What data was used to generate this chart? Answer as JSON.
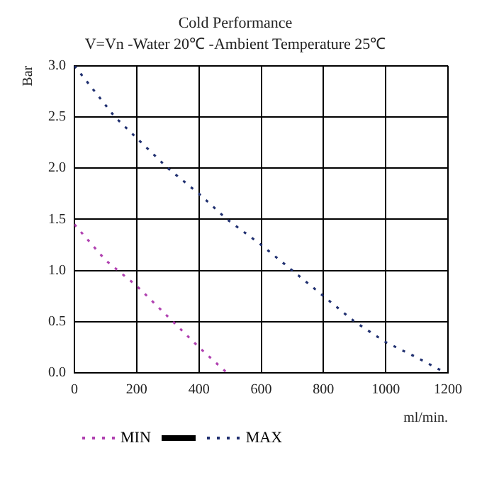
{
  "chart_data": {
    "type": "line",
    "title": "Cold Performance",
    "subtitle": "V=Vn -Water 20℃ -Ambient Temperature 25℃",
    "xlabel": "ml/min.",
    "ylabel": "Bar",
    "series": [
      {
        "name": "MIN",
        "color": "#b040b0",
        "x": [
          0,
          100,
          200,
          300,
          400,
          490
        ],
        "values": [
          1.45,
          1.1,
          0.85,
          0.55,
          0.25,
          0
        ]
      },
      {
        "name": "MAX",
        "color": "#203070",
        "x": [
          0,
          130,
          300,
          400,
          490,
          600,
          700,
          800,
          900,
          1000,
          1100,
          1180
        ],
        "values": [
          3.0,
          2.5,
          2.0,
          1.75,
          1.5,
          1.25,
          1.0,
          0.75,
          0.5,
          0.3,
          0.15,
          0.02
        ]
      }
    ],
    "xlim": [
      0,
      1200
    ],
    "xticks": [
      0,
      200,
      400,
      600,
      800,
      1000,
      1200
    ],
    "ylim": [
      0,
      3
    ],
    "yticks": [
      {
        "value": 0,
        "label": "0.0"
      },
      {
        "value": 0.5,
        "label": "0.5"
      },
      {
        "value": 1,
        "label": "1.0"
      },
      {
        "value": 1.5,
        "label": "1.5"
      },
      {
        "value": 2,
        "label": "2.0"
      },
      {
        "value": 2.5,
        "label": "2.5"
      },
      {
        "value": 3,
        "label": "3.0"
      }
    ],
    "grid": true,
    "legend": "bottom",
    "marker": "none",
    "line_style": "dotted"
  }
}
